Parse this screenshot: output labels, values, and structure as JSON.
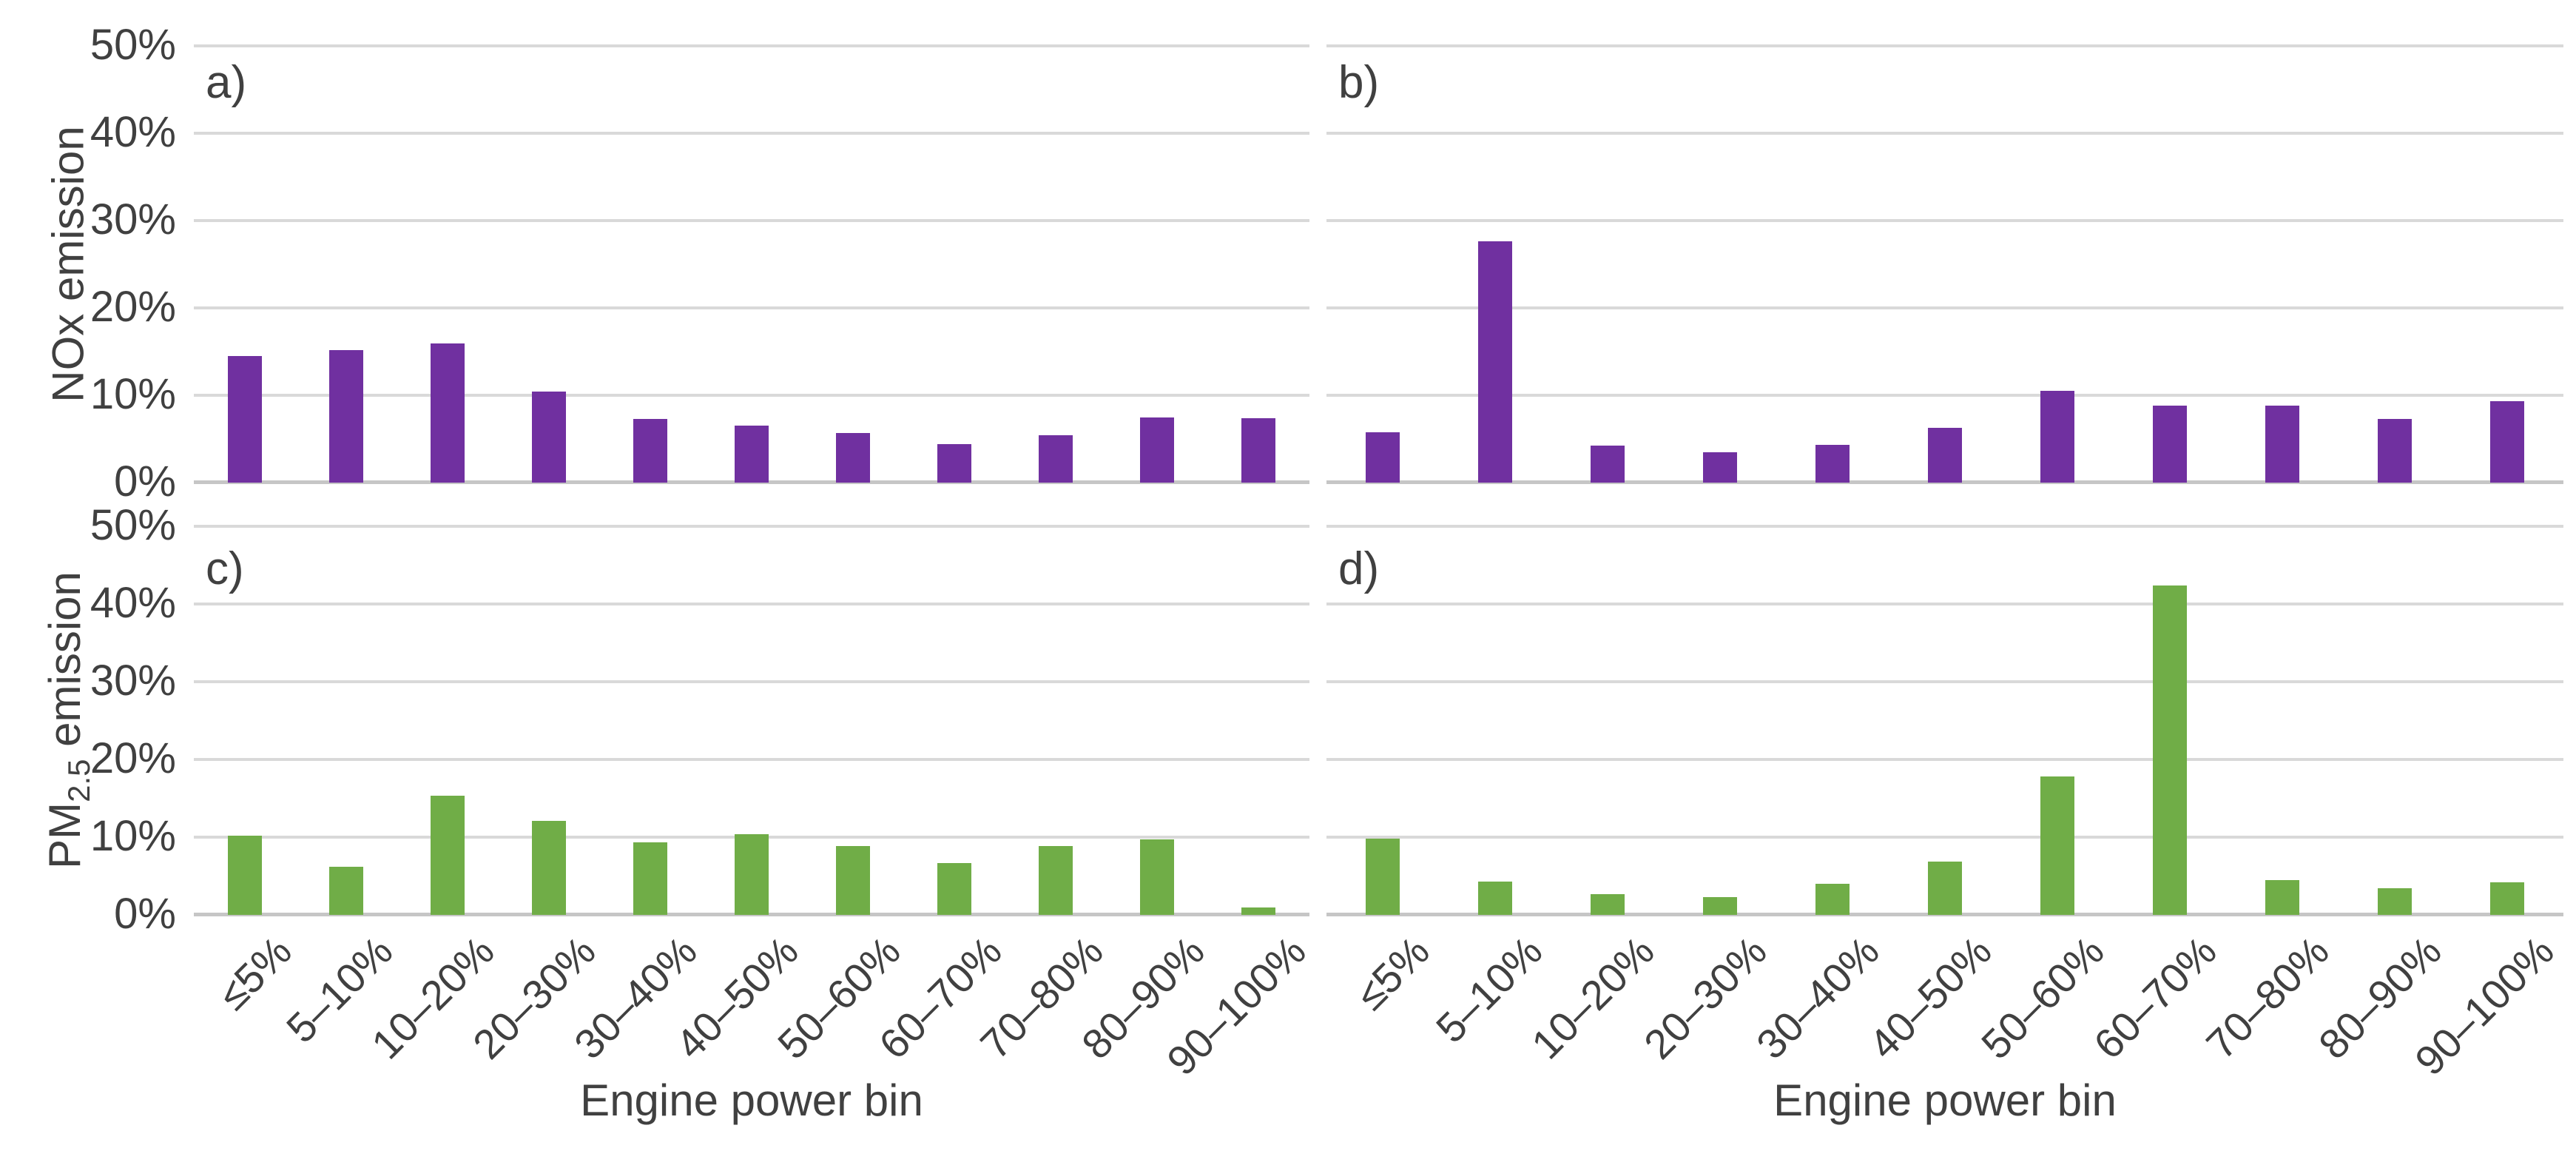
{
  "colors": {
    "nox_purple": "#7030A0",
    "pm_green": "#70AD47",
    "gridline": "#D9D9D9",
    "axis_line": "#C6C6C6",
    "text": "#404040",
    "background": "#FFFFFF"
  },
  "y_axis": {
    "ticks": [
      "50%",
      "40%",
      "30%",
      "20%",
      "10%",
      "0%"
    ]
  },
  "ylabel_top": "NOx emission",
  "ylabel_bottom_parts": {
    "prefix": "PM",
    "sub": "2.5",
    "suffix": " emission"
  },
  "x_axis_title": "Engine power bin",
  "chart_data": {
    "type": "bar",
    "layout": "2x2-panels",
    "grid": true,
    "legend": "none",
    "ylim": [
      0,
      50
    ],
    "yticks": [
      "0%",
      "10%",
      "20%",
      "30%",
      "40%",
      "50%"
    ],
    "xlabel": "Engine power bin",
    "categories": [
      "≤5%",
      "5–10%",
      "10–20%",
      "20–30%",
      "30–40%",
      "40–50%",
      "50–60%",
      "60–70%",
      "70–80%",
      "80–90%",
      "90–100%"
    ],
    "panels": [
      {
        "id": "a",
        "label": "a)",
        "position": "top-left",
        "ylabel": "NOx emission",
        "color": "#7030A0",
        "values": [
          14.5,
          15.2,
          15.9,
          10.4,
          7.3,
          6.5,
          5.7,
          4.4,
          5.4,
          7.5,
          7.4
        ]
      },
      {
        "id": "b",
        "label": "b)",
        "position": "top-right",
        "ylabel": "NOx emission",
        "color": "#7030A0",
        "values": [
          5.8,
          27.6,
          4.2,
          3.5,
          4.3,
          6.3,
          10.5,
          8.8,
          8.8,
          7.3,
          9.3
        ]
      },
      {
        "id": "c",
        "label": "c)",
        "position": "bottom-left",
        "ylabel": "PM2.5 emission",
        "color": "#70AD47",
        "values": [
          10.2,
          6.2,
          15.3,
          12.1,
          9.3,
          10.4,
          8.9,
          6.7,
          8.9,
          9.7,
          1.0
        ]
      },
      {
        "id": "d",
        "label": "d)",
        "position": "bottom-right",
        "ylabel": "PM2.5 emission",
        "color": "#70AD47",
        "values": [
          9.8,
          4.3,
          2.7,
          2.3,
          4.0,
          6.9,
          17.8,
          42.4,
          4.5,
          3.4,
          4.2
        ]
      }
    ]
  }
}
